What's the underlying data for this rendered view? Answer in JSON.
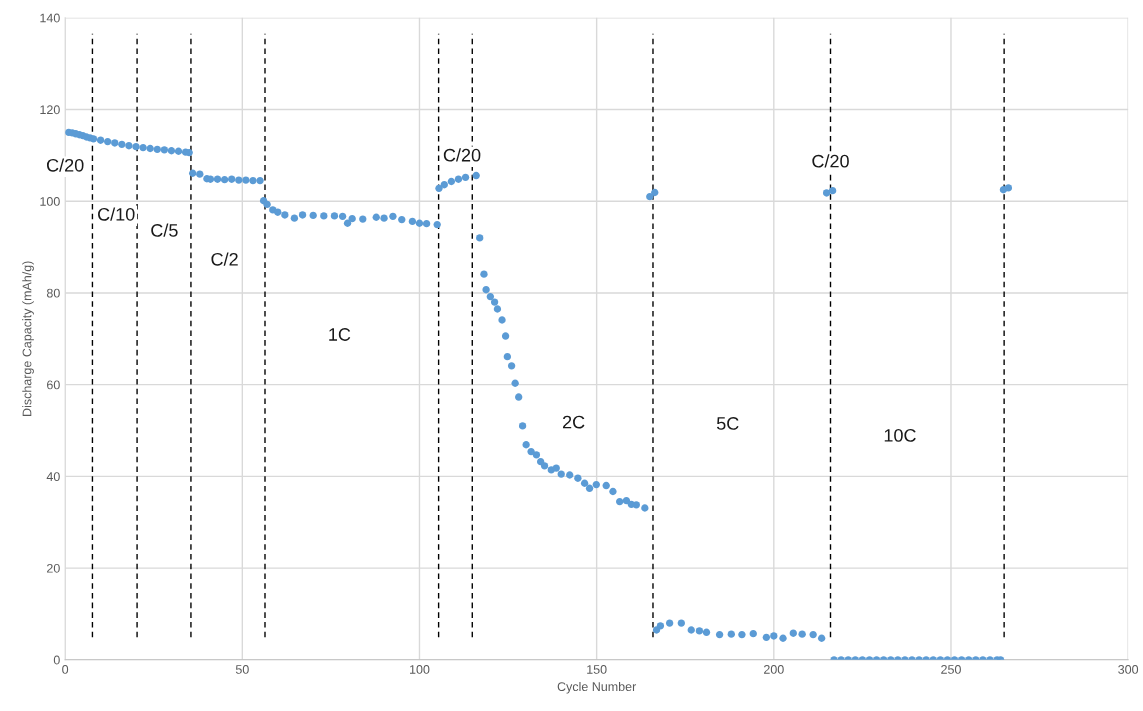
{
  "chart_data": {
    "type": "scatter",
    "xlabel": "Cycle Number",
    "ylabel": "Discharge Capacity (mAh/g)",
    "xlim": [
      0,
      300
    ],
    "xticks": [
      0,
      50,
      100,
      150,
      200,
      250,
      300
    ],
    "ylim": [
      0,
      140
    ],
    "yticks": [
      0,
      20,
      40,
      60,
      80,
      100,
      120,
      140
    ],
    "grid": true,
    "marker": "circle",
    "series": [
      {
        "color": "#5b9bd5",
        "x": [
          1,
          2,
          3,
          4,
          5,
          6,
          7,
          8,
          10,
          12,
          14,
          16,
          18,
          20,
          22,
          24,
          26,
          28,
          30,
          32,
          34,
          35,
          36,
          38,
          40,
          41,
          43,
          45,
          47,
          49,
          51,
          53,
          55,
          56,
          57,
          58.6,
          60,
          62,
          64.7,
          67,
          70,
          73,
          76,
          78.3,
          79.7,
          81,
          84,
          87.8,
          90,
          92.5,
          95,
          98,
          100,
          102,
          105,
          105.5,
          107,
          109,
          111,
          113,
          116,
          117,
          118.2,
          118.8,
          120,
          121.2,
          122,
          123.3,
          124.3,
          124.8,
          126,
          127,
          128,
          129.1,
          130.1,
          131.5,
          133,
          134.2,
          135.3,
          137.2,
          138.6,
          140,
          142.4,
          144.7,
          146.6,
          148,
          149.9,
          152.7,
          154.6,
          156.5,
          158.4,
          159.8,
          161.2,
          163.6,
          165,
          166.4,
          166.9,
          168,
          170.6,
          173.9,
          176.7,
          179,
          181,
          184.7,
          188,
          191,
          194.2,
          197.9,
          200,
          202.6,
          205.5,
          208,
          211.1,
          213.5,
          214.9,
          216.6,
          217,
          219,
          221,
          223,
          225,
          227,
          229,
          231,
          233,
          235,
          237,
          239,
          241,
          243,
          245,
          247,
          249,
          251,
          253,
          255,
          257,
          259,
          261,
          263,
          264,
          264.8,
          266.2
        ],
        "values": [
          115.0,
          114.9,
          114.7,
          114.5,
          114.3,
          114.0,
          113.8,
          113.6,
          113.3,
          113.0,
          112.7,
          112.4,
          112.1,
          111.9,
          111.7,
          111.5,
          111.3,
          111.2,
          111.0,
          110.9,
          110.7,
          110.6,
          106.1,
          105.9,
          104.9,
          104.8,
          104.8,
          104.7,
          104.8,
          104.6,
          104.6,
          104.5,
          104.5,
          100.1,
          99.3,
          98.1,
          97.6,
          97.0,
          96.3,
          97.0,
          96.9,
          96.8,
          96.8,
          96.7,
          95.2,
          96.2,
          96.1,
          96.5,
          96.3,
          96.7,
          96.0,
          95.6,
          95.2,
          95.1,
          94.9,
          102.8,
          103.6,
          104.3,
          104.8,
          105.2,
          105.6,
          92.0,
          84.1,
          80.7,
          79.2,
          78.0,
          76.5,
          74.1,
          70.6,
          66.1,
          64.1,
          60.3,
          57.3,
          51.0,
          46.9,
          45.4,
          44.7,
          43.2,
          42.3,
          41.4,
          41.8,
          40.5,
          40.3,
          39.6,
          38.5,
          37.4,
          38.2,
          38.0,
          36.7,
          34.5,
          34.7,
          33.9,
          33.8,
          33.1,
          101.0,
          101.9,
          6.5,
          7.4,
          8.0,
          8.0,
          6.5,
          6.3,
          6.0,
          5.5,
          5.6,
          5.5,
          5.7,
          4.9,
          5.2,
          4.7,
          5.8,
          5.6,
          5.5,
          4.7,
          101.8,
          102.3,
          0.0,
          0.0,
          0.0,
          0.0,
          0.0,
          0.0,
          0.0,
          0.0,
          0.0,
          0.0,
          0.0,
          0.0,
          0.0,
          0.0,
          0.0,
          0.0,
          0.0,
          0.0,
          0.0,
          0.0,
          0.0,
          0.0,
          0.0,
          0.0,
          0.0,
          102.5,
          102.9
        ]
      }
    ],
    "ref_lines": [
      {
        "axis": "x",
        "value": 7.7,
        "color": "#000000",
        "line_style": "dashed"
      },
      {
        "axis": "x",
        "value": 20.3,
        "color": "#000000",
        "line_style": "dashed"
      },
      {
        "axis": "x",
        "value": 35.5,
        "color": "#000000",
        "line_style": "dashed"
      },
      {
        "axis": "x",
        "value": 56.4,
        "color": "#000000",
        "line_style": "dashed"
      },
      {
        "axis": "x",
        "value": 105.4,
        "color": "#000000",
        "line_style": "dashed"
      },
      {
        "axis": "x",
        "value": 114.9,
        "color": "#000000",
        "line_style": "dashed"
      },
      {
        "axis": "x",
        "value": 165.9,
        "color": "#000000",
        "line_style": "dashed"
      },
      {
        "axis": "x",
        "value": 216,
        "color": "#000000",
        "line_style": "dashed"
      },
      {
        "axis": "x",
        "value": 265,
        "color": "#000000",
        "line_style": "dashed"
      }
    ],
    "annotations": [
      {
        "text": "C/20",
        "x": 0,
        "y": 107.5
      },
      {
        "text": "C/10",
        "x": 14.4,
        "y": 96.8
      },
      {
        "text": "C/5",
        "x": 28,
        "y": 93.3
      },
      {
        "text": "C/2",
        "x": 45,
        "y": 87
      },
      {
        "text": "1C",
        "x": 77.4,
        "y": 70.6
      },
      {
        "text": "C/20",
        "x": 112,
        "y": 109.7
      },
      {
        "text": "2C",
        "x": 143.5,
        "y": 51.5
      },
      {
        "text": "5C",
        "x": 187,
        "y": 51.2
      },
      {
        "text": "C/20",
        "x": 216,
        "y": 108.4
      },
      {
        "text": "10C",
        "x": 235.6,
        "y": 48.6
      }
    ]
  }
}
